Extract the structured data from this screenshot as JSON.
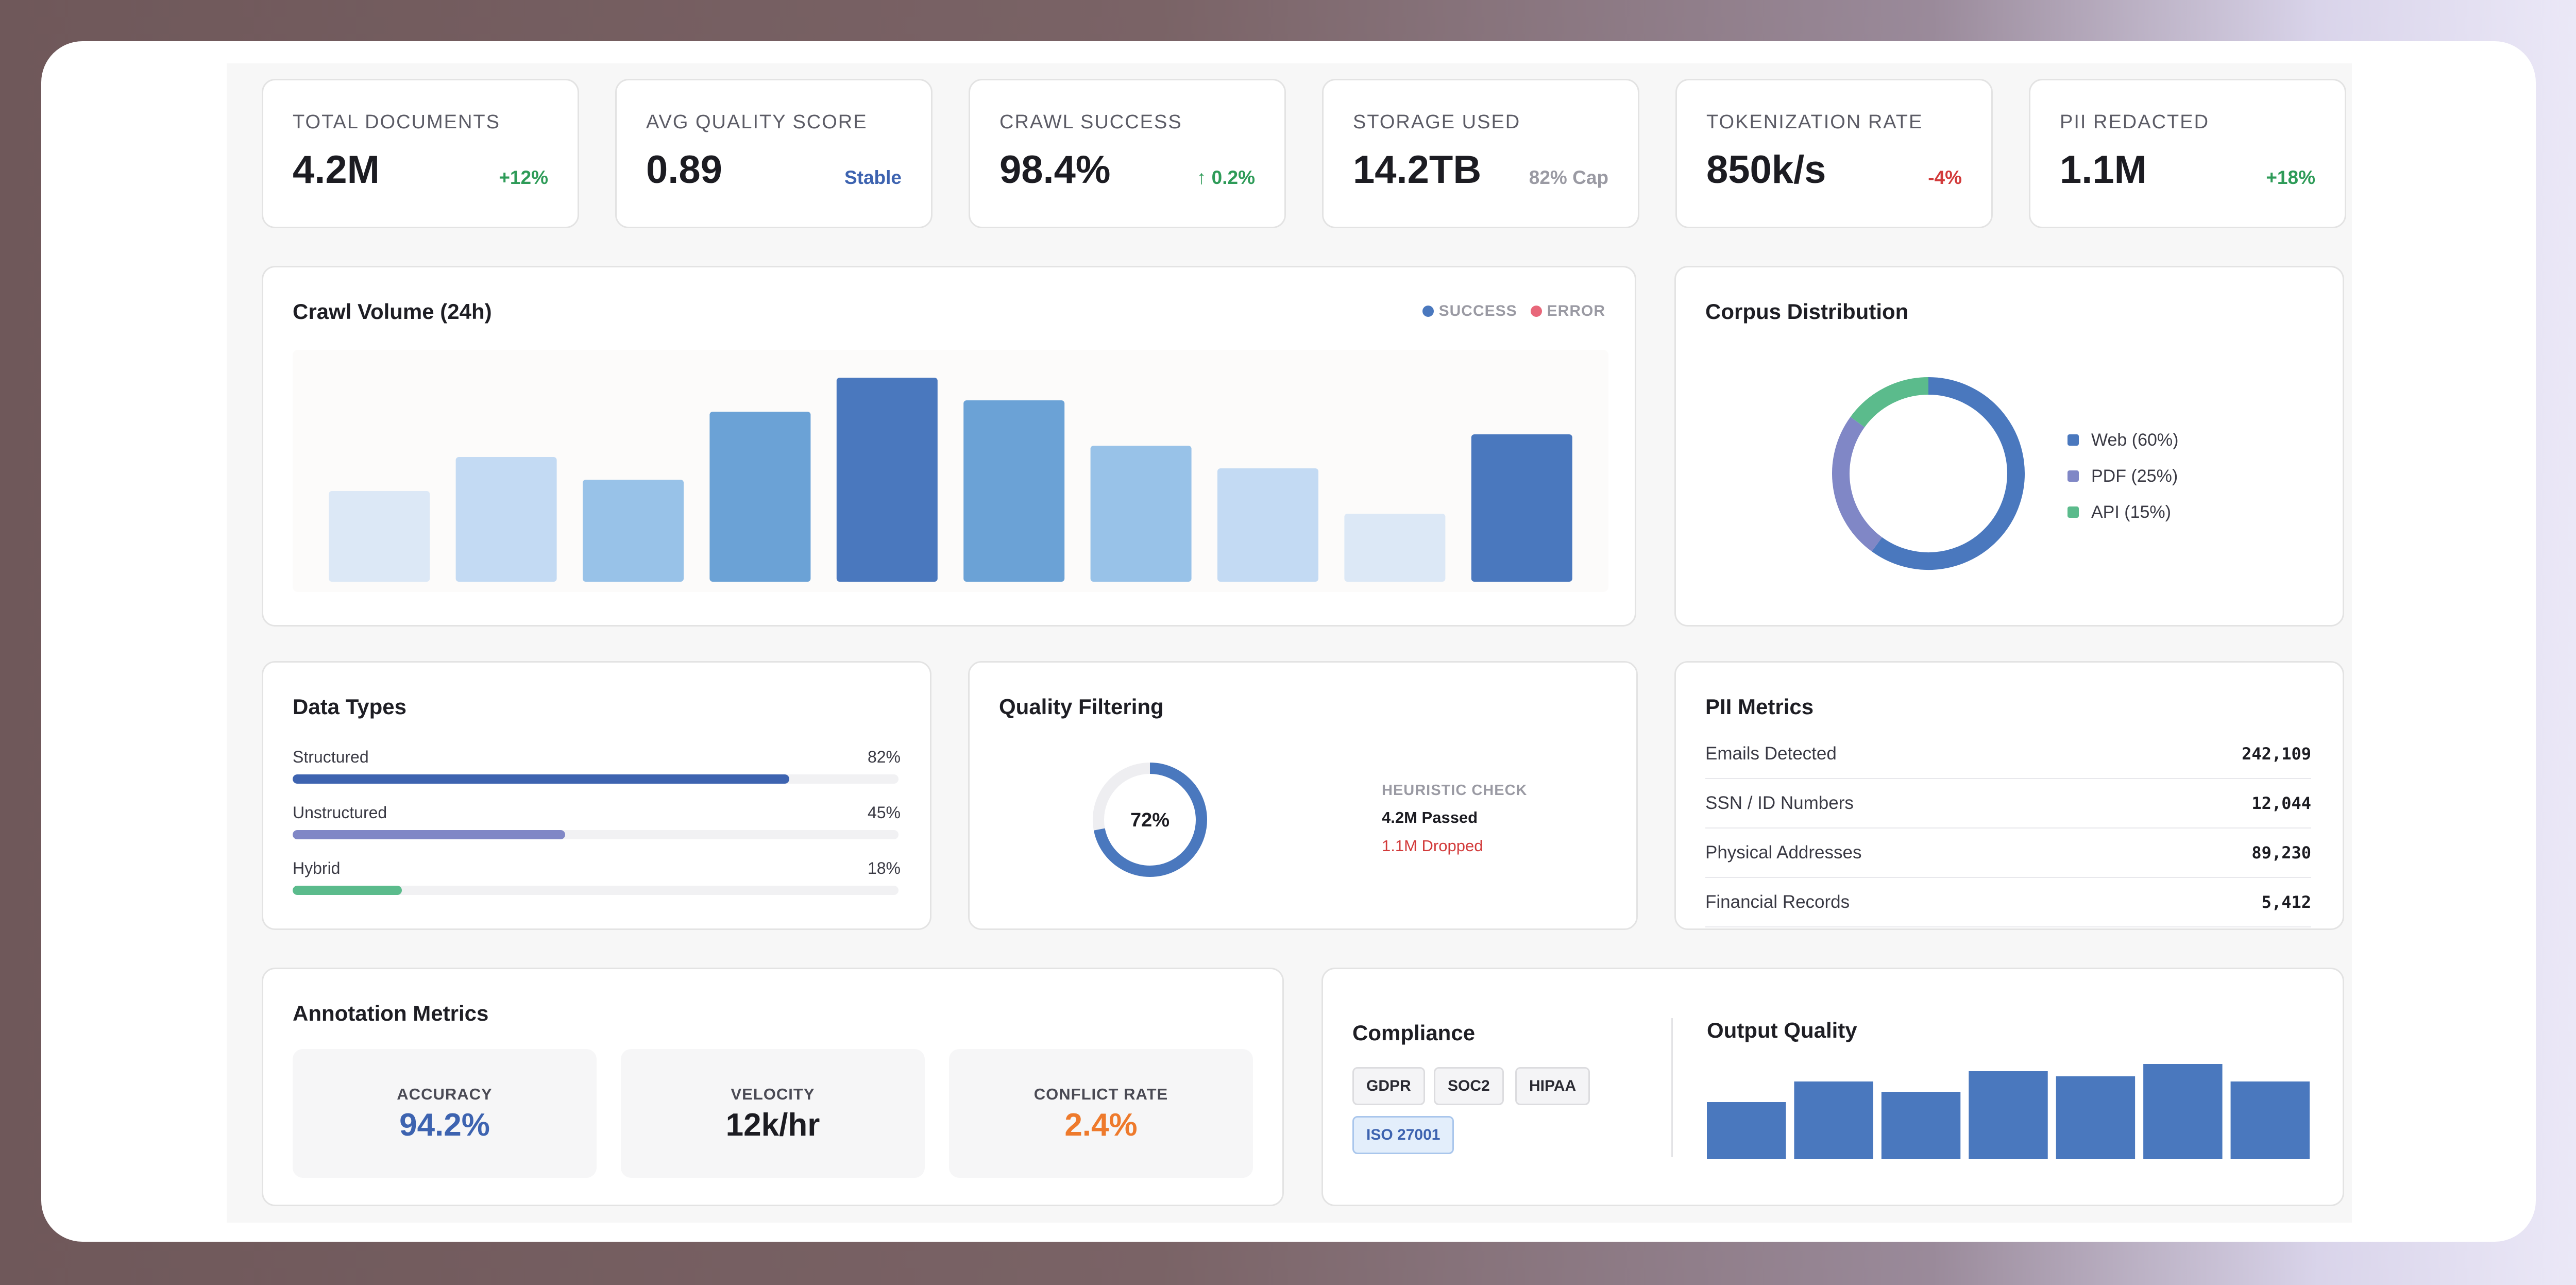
{
  "kpis": [
    {
      "label": "TOTAL DOCUMENTS",
      "value": "4.2M",
      "delta": "+12%",
      "delta_color": "#2e9b58"
    },
    {
      "label": "AVG QUALITY SCORE",
      "value": "0.89",
      "delta": "Stable",
      "delta_color": "#3d63b0"
    },
    {
      "label": "CRAWL SUCCESS",
      "value": "98.4%",
      "delta": "↑ 0.2%",
      "delta_color": "#2e9b58"
    },
    {
      "label": "STORAGE USED",
      "value": "14.2TB",
      "delta": "82% Cap",
      "delta_color": "#9a9aa3"
    },
    {
      "label": "TOKENIZATION RATE",
      "value": "850k/s",
      "delta": "-4%",
      "delta_color": "#d23a3a"
    },
    {
      "label": "PII REDACTED",
      "value": "1.1M",
      "delta": "+18%",
      "delta_color": "#2e9b58"
    }
  ],
  "crawl": {
    "title": "Crawl Volume (24h)",
    "legend": [
      {
        "label": "SUCCESS",
        "color": "#4a78be"
      },
      {
        "label": "ERROR",
        "color": "#e8677a"
      }
    ]
  },
  "chart_data": [
    {
      "type": "bar",
      "name_ref": "crawl-volume",
      "values": [
        40,
        55,
        45,
        75,
        90,
        80,
        60,
        50,
        30,
        65
      ],
      "ylim": [
        0,
        100
      ],
      "colors": [
        "#dce8f6",
        "#c3daf3",
        "#98c2e8",
        "#6ba2d6",
        "#4a78be",
        "#6ba2d6",
        "#98c2e8",
        "#c3daf3",
        "#dce8f6",
        "#4a78be"
      ]
    },
    {
      "type": "pie",
      "name_ref": "corpus-distribution",
      "slices": [
        {
          "label": "Web (60%)",
          "value": 60,
          "color": "#4a78be"
        },
        {
          "label": "PDF (25%)",
          "value": 25,
          "color": "#8087c6"
        },
        {
          "label": "API (15%)",
          "value": 15,
          "color": "#5bbb8c"
        }
      ]
    },
    {
      "type": "bar",
      "name_ref": "output-quality",
      "values": [
        55,
        75,
        65,
        85,
        80,
        92,
        75
      ],
      "ylim": [
        0,
        100
      ],
      "color": "#4a78be"
    }
  ],
  "corpus": {
    "title": "Corpus Distribution"
  },
  "data_types": {
    "title": "Data Types",
    "rows": [
      {
        "label": "Structured",
        "pct": "82%",
        "value": 0.82,
        "color": "#3d63b0"
      },
      {
        "label": "Unstructured",
        "pct": "45%",
        "value": 0.45,
        "color": "#8087c6"
      },
      {
        "label": "Hybrid",
        "pct": "18%",
        "value": 0.18,
        "color": "#5bbb8c"
      }
    ]
  },
  "quality": {
    "title": "Quality Filtering",
    "gauge_value": 0.72,
    "gauge_label": "72%",
    "check_label": "HEURISTIC CHECK",
    "passed": "4.2M Passed",
    "dropped": "1.1M Dropped"
  },
  "pii": {
    "title": "PII Metrics",
    "rows": [
      {
        "label": "Emails Detected",
        "value": "242,109"
      },
      {
        "label": "SSN / ID Numbers",
        "value": "12,044"
      },
      {
        "label": "Physical Addresses",
        "value": "89,230"
      },
      {
        "label": "Financial Records",
        "value": "5,412"
      }
    ]
  },
  "annotation": {
    "title": "Annotation Metrics",
    "metrics": [
      {
        "label": "ACCURACY",
        "value": "94.2%",
        "color": "#3d63b0"
      },
      {
        "label": "VELOCITY",
        "value": "12k/hr",
        "color": "#1c1c22"
      },
      {
        "label": "CONFLICT RATE",
        "value": "2.4%",
        "color": "#ee7a2c"
      }
    ]
  },
  "compliance": {
    "title": "Compliance",
    "badges": [
      "GDPR",
      "SOC2",
      "HIPAA",
      "ISO 27001"
    ]
  },
  "output_quality": {
    "title": "Output Quality"
  }
}
